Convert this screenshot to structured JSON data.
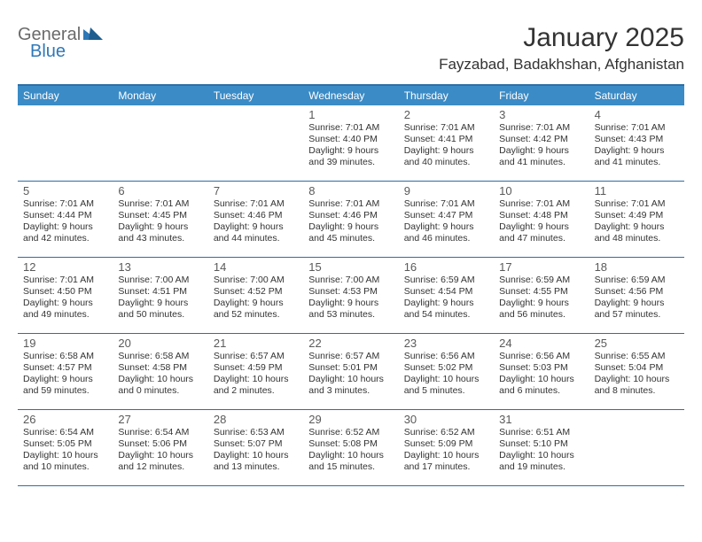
{
  "logo": {
    "general": "General",
    "blue": "Blue"
  },
  "title": "January 2025",
  "location": "Fayzabad, Badakhshan, Afghanistan",
  "colors": {
    "header_bg": "#3b8bc6",
    "rule": "#2f6ea3",
    "text": "#333333",
    "logo_gray": "#6a6a6a",
    "logo_blue": "#2f78b7",
    "background": "#ffffff"
  },
  "daysOfWeek": [
    "Sunday",
    "Monday",
    "Tuesday",
    "Wednesday",
    "Thursday",
    "Friday",
    "Saturday"
  ],
  "weeks": [
    [
      null,
      null,
      null,
      {
        "n": "1",
        "sr": "Sunrise: 7:01 AM",
        "ss": "Sunset: 4:40 PM",
        "d1": "Daylight: 9 hours",
        "d2": "and 39 minutes."
      },
      {
        "n": "2",
        "sr": "Sunrise: 7:01 AM",
        "ss": "Sunset: 4:41 PM",
        "d1": "Daylight: 9 hours",
        "d2": "and 40 minutes."
      },
      {
        "n": "3",
        "sr": "Sunrise: 7:01 AM",
        "ss": "Sunset: 4:42 PM",
        "d1": "Daylight: 9 hours",
        "d2": "and 41 minutes."
      },
      {
        "n": "4",
        "sr": "Sunrise: 7:01 AM",
        "ss": "Sunset: 4:43 PM",
        "d1": "Daylight: 9 hours",
        "d2": "and 41 minutes."
      }
    ],
    [
      {
        "n": "5",
        "sr": "Sunrise: 7:01 AM",
        "ss": "Sunset: 4:44 PM",
        "d1": "Daylight: 9 hours",
        "d2": "and 42 minutes."
      },
      {
        "n": "6",
        "sr": "Sunrise: 7:01 AM",
        "ss": "Sunset: 4:45 PM",
        "d1": "Daylight: 9 hours",
        "d2": "and 43 minutes."
      },
      {
        "n": "7",
        "sr": "Sunrise: 7:01 AM",
        "ss": "Sunset: 4:46 PM",
        "d1": "Daylight: 9 hours",
        "d2": "and 44 minutes."
      },
      {
        "n": "8",
        "sr": "Sunrise: 7:01 AM",
        "ss": "Sunset: 4:46 PM",
        "d1": "Daylight: 9 hours",
        "d2": "and 45 minutes."
      },
      {
        "n": "9",
        "sr": "Sunrise: 7:01 AM",
        "ss": "Sunset: 4:47 PM",
        "d1": "Daylight: 9 hours",
        "d2": "and 46 minutes."
      },
      {
        "n": "10",
        "sr": "Sunrise: 7:01 AM",
        "ss": "Sunset: 4:48 PM",
        "d1": "Daylight: 9 hours",
        "d2": "and 47 minutes."
      },
      {
        "n": "11",
        "sr": "Sunrise: 7:01 AM",
        "ss": "Sunset: 4:49 PM",
        "d1": "Daylight: 9 hours",
        "d2": "and 48 minutes."
      }
    ],
    [
      {
        "n": "12",
        "sr": "Sunrise: 7:01 AM",
        "ss": "Sunset: 4:50 PM",
        "d1": "Daylight: 9 hours",
        "d2": "and 49 minutes."
      },
      {
        "n": "13",
        "sr": "Sunrise: 7:00 AM",
        "ss": "Sunset: 4:51 PM",
        "d1": "Daylight: 9 hours",
        "d2": "and 50 minutes."
      },
      {
        "n": "14",
        "sr": "Sunrise: 7:00 AM",
        "ss": "Sunset: 4:52 PM",
        "d1": "Daylight: 9 hours",
        "d2": "and 52 minutes."
      },
      {
        "n": "15",
        "sr": "Sunrise: 7:00 AM",
        "ss": "Sunset: 4:53 PM",
        "d1": "Daylight: 9 hours",
        "d2": "and 53 minutes."
      },
      {
        "n": "16",
        "sr": "Sunrise: 6:59 AM",
        "ss": "Sunset: 4:54 PM",
        "d1": "Daylight: 9 hours",
        "d2": "and 54 minutes."
      },
      {
        "n": "17",
        "sr": "Sunrise: 6:59 AM",
        "ss": "Sunset: 4:55 PM",
        "d1": "Daylight: 9 hours",
        "d2": "and 56 minutes."
      },
      {
        "n": "18",
        "sr": "Sunrise: 6:59 AM",
        "ss": "Sunset: 4:56 PM",
        "d1": "Daylight: 9 hours",
        "d2": "and 57 minutes."
      }
    ],
    [
      {
        "n": "19",
        "sr": "Sunrise: 6:58 AM",
        "ss": "Sunset: 4:57 PM",
        "d1": "Daylight: 9 hours",
        "d2": "and 59 minutes."
      },
      {
        "n": "20",
        "sr": "Sunrise: 6:58 AM",
        "ss": "Sunset: 4:58 PM",
        "d1": "Daylight: 10 hours",
        "d2": "and 0 minutes."
      },
      {
        "n": "21",
        "sr": "Sunrise: 6:57 AM",
        "ss": "Sunset: 4:59 PM",
        "d1": "Daylight: 10 hours",
        "d2": "and 2 minutes."
      },
      {
        "n": "22",
        "sr": "Sunrise: 6:57 AM",
        "ss": "Sunset: 5:01 PM",
        "d1": "Daylight: 10 hours",
        "d2": "and 3 minutes."
      },
      {
        "n": "23",
        "sr": "Sunrise: 6:56 AM",
        "ss": "Sunset: 5:02 PM",
        "d1": "Daylight: 10 hours",
        "d2": "and 5 minutes."
      },
      {
        "n": "24",
        "sr": "Sunrise: 6:56 AM",
        "ss": "Sunset: 5:03 PM",
        "d1": "Daylight: 10 hours",
        "d2": "and 6 minutes."
      },
      {
        "n": "25",
        "sr": "Sunrise: 6:55 AM",
        "ss": "Sunset: 5:04 PM",
        "d1": "Daylight: 10 hours",
        "d2": "and 8 minutes."
      }
    ],
    [
      {
        "n": "26",
        "sr": "Sunrise: 6:54 AM",
        "ss": "Sunset: 5:05 PM",
        "d1": "Daylight: 10 hours",
        "d2": "and 10 minutes."
      },
      {
        "n": "27",
        "sr": "Sunrise: 6:54 AM",
        "ss": "Sunset: 5:06 PM",
        "d1": "Daylight: 10 hours",
        "d2": "and 12 minutes."
      },
      {
        "n": "28",
        "sr": "Sunrise: 6:53 AM",
        "ss": "Sunset: 5:07 PM",
        "d1": "Daylight: 10 hours",
        "d2": "and 13 minutes."
      },
      {
        "n": "29",
        "sr": "Sunrise: 6:52 AM",
        "ss": "Sunset: 5:08 PM",
        "d1": "Daylight: 10 hours",
        "d2": "and 15 minutes."
      },
      {
        "n": "30",
        "sr": "Sunrise: 6:52 AM",
        "ss": "Sunset: 5:09 PM",
        "d1": "Daylight: 10 hours",
        "d2": "and 17 minutes."
      },
      {
        "n": "31",
        "sr": "Sunrise: 6:51 AM",
        "ss": "Sunset: 5:10 PM",
        "d1": "Daylight: 10 hours",
        "d2": "and 19 minutes."
      },
      null
    ]
  ]
}
